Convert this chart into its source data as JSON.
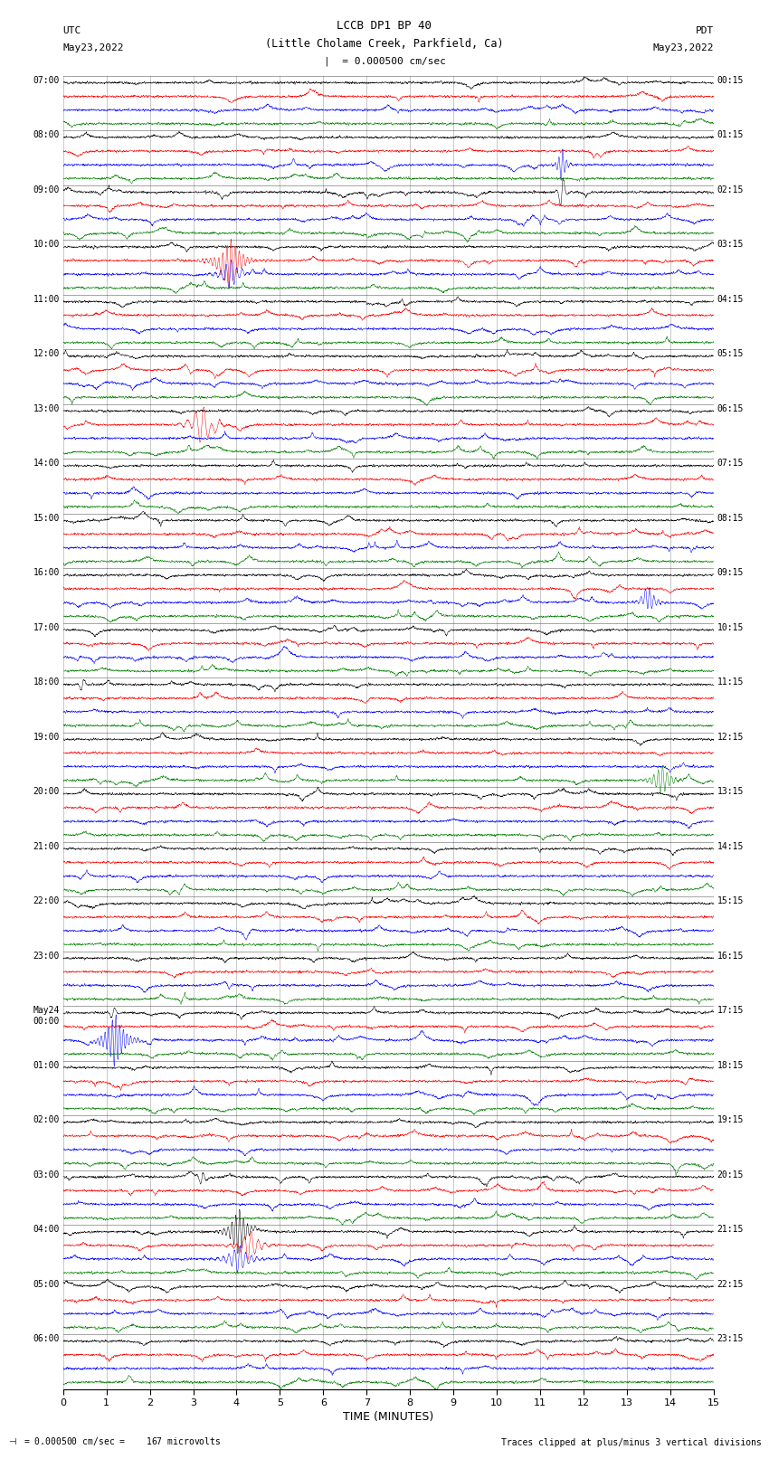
{
  "title1": "LCCB DP1 BP 40",
  "title2": "(Little Cholame Creek, Parkfield, Ca)",
  "scale_text": "|  = 0.000500 cm/sec",
  "scale_note": "= 0.000500 cm/sec =    167 microvolts",
  "clip_note": "Traces clipped at plus/minus 3 vertical divisions",
  "utc_label": "UTC",
  "utc_date": "May23,2022",
  "pdt_label": "PDT",
  "pdt_date": "May23,2022",
  "xlabel": "TIME (MINUTES)",
  "left_times": [
    "07:00",
    "08:00",
    "09:00",
    "10:00",
    "11:00",
    "12:00",
    "13:00",
    "14:00",
    "15:00",
    "16:00",
    "17:00",
    "18:00",
    "19:00",
    "20:00",
    "21:00",
    "22:00",
    "23:00",
    "May24\n00:00",
    "01:00",
    "02:00",
    "03:00",
    "04:00",
    "05:00",
    "06:00"
  ],
  "right_times": [
    "00:15",
    "01:15",
    "02:15",
    "03:15",
    "04:15",
    "05:15",
    "06:15",
    "07:15",
    "08:15",
    "09:15",
    "10:15",
    "11:15",
    "12:15",
    "13:15",
    "14:15",
    "15:15",
    "16:15",
    "17:15",
    "18:15",
    "19:15",
    "20:15",
    "21:15",
    "22:15",
    "23:15"
  ],
  "trace_colors": [
    "black",
    "red",
    "blue",
    "green"
  ],
  "background_color": "white",
  "n_rows": 24,
  "traces_per_row": 4,
  "duration": 15.0,
  "n_samples": 4500,
  "noise_std": 0.18,
  "large_events": [
    {
      "row": 1,
      "trace": 2,
      "time": 11.5,
      "amp": 3.5,
      "dur": 0.12
    },
    {
      "row": 2,
      "trace": 0,
      "time": 11.5,
      "amp": 5.0,
      "dur": 0.08
    },
    {
      "row": 3,
      "trace": 1,
      "time": 3.85,
      "amp": 4.5,
      "dur": 0.35
    },
    {
      "row": 3,
      "trace": 2,
      "time": 3.85,
      "amp": 3.0,
      "dur": 0.25
    },
    {
      "row": 6,
      "trace": 1,
      "time": 3.2,
      "amp": 4.0,
      "dur": 0.3
    },
    {
      "row": 9,
      "trace": 2,
      "time": 13.5,
      "amp": 2.5,
      "dur": 0.2
    },
    {
      "row": 11,
      "trace": 0,
      "time": 0.45,
      "amp": 2.0,
      "dur": 0.08
    },
    {
      "row": 12,
      "trace": 3,
      "time": 13.8,
      "amp": 3.0,
      "dur": 0.25
    },
    {
      "row": 17,
      "trace": 2,
      "time": 1.2,
      "amp": 5.0,
      "dur": 0.3
    },
    {
      "row": 17,
      "trace": 0,
      "time": 1.15,
      "amp": 1.5,
      "dur": 0.1
    },
    {
      "row": 20,
      "trace": 0,
      "time": 3.2,
      "amp": 1.8,
      "dur": 0.1
    },
    {
      "row": 21,
      "trace": 0,
      "time": 4.05,
      "amp": 4.5,
      "dur": 0.25
    },
    {
      "row": 21,
      "trace": 1,
      "time": 4.3,
      "amp": 3.0,
      "dur": 0.3
    },
    {
      "row": 21,
      "trace": 2,
      "time": 4.05,
      "amp": 2.5,
      "dur": 0.35
    }
  ],
  "seed": 12345
}
